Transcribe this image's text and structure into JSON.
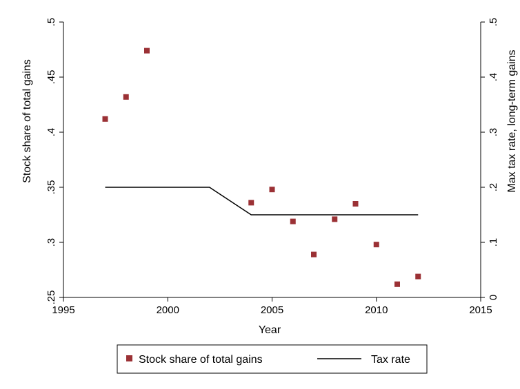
{
  "chart_data": {
    "type": "scatter",
    "xlabel": "Year",
    "ylabel_left": "Stock share of total gains",
    "ylabel_right": "Max tax rate, long-term gains",
    "xlim": [
      1995,
      2015
    ],
    "ylim_left": [
      0.25,
      0.5
    ],
    "ylim_right": [
      0,
      0.5
    ],
    "x_ticks": [
      1995,
      2000,
      2005,
      2010,
      2015
    ],
    "x_tick_labels": [
      "1995",
      "2000",
      "2005",
      "2010",
      "2015"
    ],
    "y_left_ticks": [
      0.25,
      0.3,
      0.35,
      0.4,
      0.45,
      0.5
    ],
    "y_left_tick_labels": [
      ".25",
      ".3",
      ".35",
      ".4",
      ".45",
      ".5"
    ],
    "y_right_ticks": [
      0,
      0.1,
      0.2,
      0.3,
      0.4,
      0.5
    ],
    "y_right_tick_labels": [
      "0",
      ".1",
      ".2",
      ".3",
      ".4",
      ".5"
    ],
    "grid": false,
    "legend_position": "bottom",
    "series": [
      {
        "name": "Stock share of total gains",
        "type": "scatter",
        "axis": "left",
        "color": "#9b3135",
        "x": [
          1997,
          1998,
          1999,
          2004,
          2005,
          2006,
          2007,
          2008,
          2009,
          2010,
          2011,
          2012
        ],
        "y": [
          0.412,
          0.432,
          0.474,
          0.336,
          0.348,
          0.319,
          0.289,
          0.321,
          0.335,
          0.298,
          0.262,
          0.269
        ]
      },
      {
        "name": "Tax rate",
        "type": "line",
        "axis": "right",
        "color": "#000000",
        "x": [
          1997,
          2002,
          2004,
          2012
        ],
        "y": [
          0.2,
          0.2,
          0.15,
          0.15
        ]
      }
    ]
  }
}
